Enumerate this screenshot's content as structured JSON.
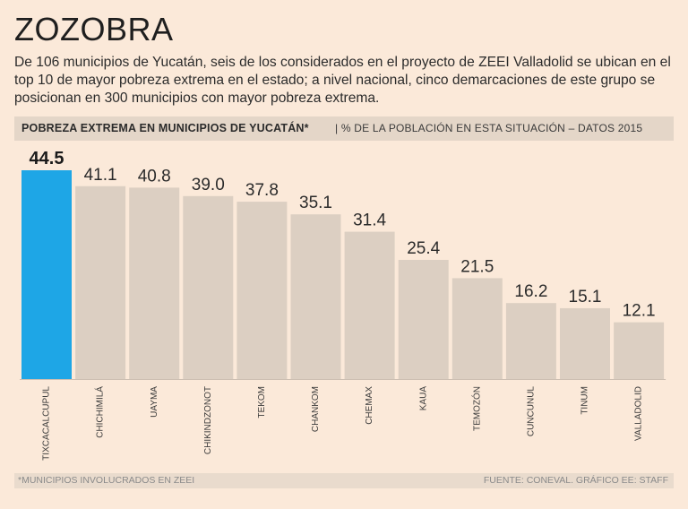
{
  "header": {
    "title": "ZOZOBRA",
    "lede": "De 106 municipios de Yucatán, seis de los considerados en el proyecto de ZEEI Valladolid se ubican en el top 10 de mayor pobreza extrema en el estado; a nivel nacional, cinco demarcaciones de este grupo se posicionan en 300 municipios con mayor pobreza extrema."
  },
  "banner": {
    "title": "POBREZA EXTREMA EN MUNICIPIOS DE YUCATÁN*",
    "subtitle": "% DE LA POBLACIÓN EN ESTA SITUACIÓN – DATOS 2015"
  },
  "footer": {
    "footnote": "*MUNICIPIOS INVOLUCRADOS EN ZEEI",
    "source": "FUENTE: CONEVAL. GRÁFICO EE: STAFF"
  },
  "colors": {
    "highlight": "#1ea6e6",
    "bar": "#dccfc2",
    "label": "#3a3a3a"
  },
  "chart_data": {
    "type": "bar",
    "title": "POBREZA EXTREMA EN MUNICIPIOS DE YUCATÁN*",
    "ylabel": "% DE LA POBLACIÓN EN ESTA SITUACIÓN – DATOS 2015",
    "categories": [
      "TIXCACALCUPUL",
      "CHICHIMILÁ",
      "UAYMA",
      "CHIKINDZONOT",
      "TEKOM",
      "CHANKOM",
      "CHEMAX",
      "KAUA",
      "TEMOZÓN",
      "CUNCUNUL",
      "TINUM",
      "VALLADOLID"
    ],
    "values": [
      44.5,
      41.1,
      40.8,
      39.0,
      37.8,
      35.1,
      31.4,
      25.4,
      21.5,
      16.2,
      15.1,
      12.1
    ],
    "value_labels": [
      "44.5",
      "41.1",
      "40.8",
      "39.0",
      "37.8",
      "35.1",
      "31.4",
      "25.4",
      "21.5",
      "16.2",
      "15.1",
      "12.1"
    ],
    "highlight_index": 0,
    "ylim": [
      0,
      44.5
    ]
  }
}
